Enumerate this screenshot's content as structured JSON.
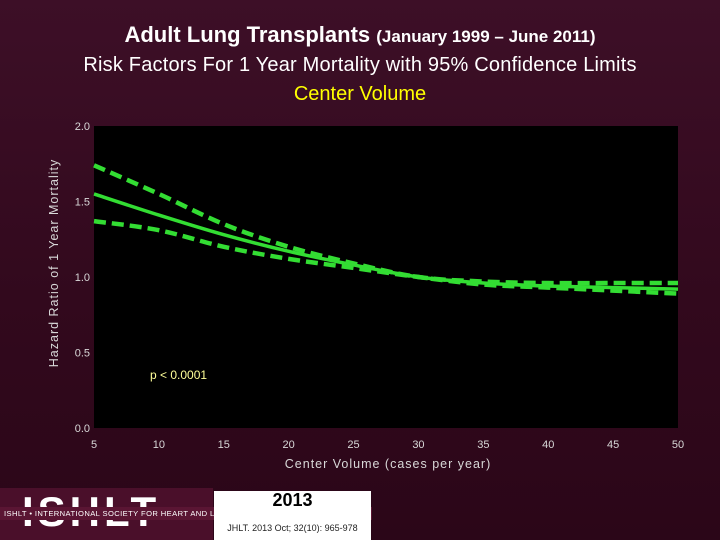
{
  "title": {
    "main": "Adult Lung Transplants",
    "dates": "(January 1999 – June 2011)",
    "subtitle": "Risk Factors For 1 Year Mortality with 95% Confidence Limits",
    "category": "Center Volume"
  },
  "chart_data": {
    "type": "line",
    "xlabel": "Center Volume (cases per year)",
    "ylabel": "Hazard Ratio of 1 Year Mortality",
    "xlim": [
      5,
      50
    ],
    "ylim": [
      0.0,
      2.0
    ],
    "x_ticks": [
      "5",
      "10",
      "15",
      "20",
      "25",
      "30",
      "35",
      "40",
      "45",
      "50"
    ],
    "y_ticks": [
      "0.0",
      "0.5",
      "1.0",
      "1.5",
      "2.0"
    ],
    "annotation": "p < 0.0001",
    "line_color": "#33dd33",
    "series": [
      {
        "role": "estimate",
        "style": "solid",
        "x": [
          5,
          10,
          15,
          20,
          25,
          30,
          35,
          40,
          45,
          50
        ],
        "y": [
          1.55,
          1.41,
          1.28,
          1.17,
          1.08,
          1.0,
          0.96,
          0.94,
          0.93,
          0.92
        ]
      },
      {
        "role": "upper-limit",
        "style": "dashed",
        "x": [
          5,
          10,
          15,
          20,
          25,
          30,
          35,
          40,
          45,
          50
        ],
        "y": [
          1.74,
          1.55,
          1.35,
          1.2,
          1.09,
          1.0,
          0.97,
          0.96,
          0.96,
          0.96
        ]
      },
      {
        "role": "lower-limit",
        "style": "dashed",
        "x": [
          5,
          10,
          15,
          20,
          25,
          30,
          35,
          40,
          45,
          50
        ],
        "y": [
          1.37,
          1.31,
          1.2,
          1.12,
          1.06,
          1.0,
          0.95,
          0.93,
          0.91,
          0.89
        ]
      }
    ]
  },
  "footer": {
    "logo": "ISHLT",
    "tagline": "ISHLT • INTERNATIONAL SOCIETY FOR HEART AND LUNG TRANSPLANTATION",
    "year": "2013",
    "citation": "JHLT. 2013 Oct; 32(10): 965-978"
  }
}
